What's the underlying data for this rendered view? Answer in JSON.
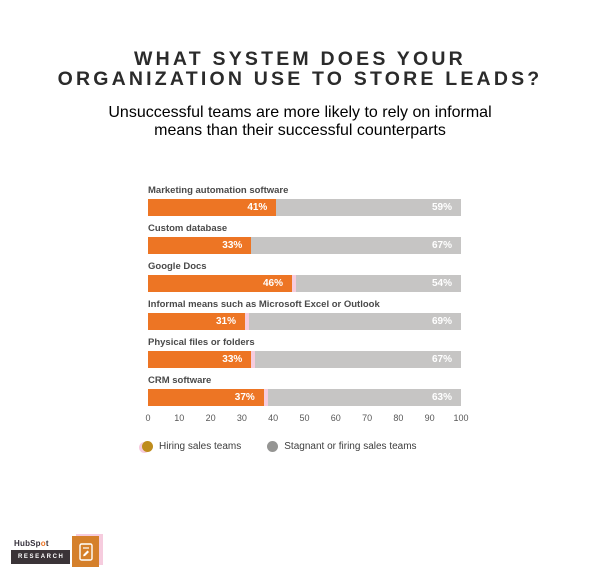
{
  "header": {
    "title_lines": [
      "WHAT SYSTEM DOES YOUR",
      "ORGANIZATION USE TO STORE LEADS?"
    ],
    "subtitle_lines": [
      "Unsuccessful teams are more likely to rely on informal",
      "means than their successful counterparts"
    ]
  },
  "chart_data": {
    "type": "bar",
    "orientation": "horizontal",
    "stacked_percent": true,
    "title": "WHAT SYSTEM DOES YOUR ORGANIZATION USE TO STORE LEADS?",
    "subtitle": "Unsuccessful teams are more likely to rely on informal means than their successful counterparts",
    "categories": [
      "Marketing automation software",
      "Custom database",
      "Google Docs",
      "Informal means such as Microsoft Excel or Outlook",
      "Physical files or folders",
      "CRM software"
    ],
    "series": [
      {
        "name": "Hiring sales teams",
        "color": "#ED7524",
        "values": [
          41,
          33,
          46,
          31,
          33,
          37
        ]
      },
      {
        "name": "Stagnant or firing sales teams",
        "color": "#C6C5C4",
        "values": [
          59,
          67,
          54,
          69,
          67,
          63
        ]
      }
    ],
    "x_ticks": [
      0,
      10,
      20,
      30,
      40,
      50,
      60,
      70,
      80,
      90,
      100
    ],
    "xlim": [
      0,
      100
    ],
    "value_label_format": "{v}%",
    "grid": false,
    "legend_position": "bottom-left"
  },
  "footer": {
    "brand_parts": [
      "HubSp",
      "o",
      "t"
    ],
    "research_label": "RESEARCH",
    "report_icon": "document-pencil-icon"
  },
  "colors": {
    "orange": "#ED7524",
    "bar_gray": "#C6C5C4",
    "pink_accent": "#F6CCDE",
    "legend_gold": "#BE8C1D",
    "legend_gray": "#959593",
    "title_text": "#2B2B2B",
    "body_text": "#4A4A4A",
    "research_dark": "#3A3337",
    "tile_orange": "#D5802B"
  }
}
